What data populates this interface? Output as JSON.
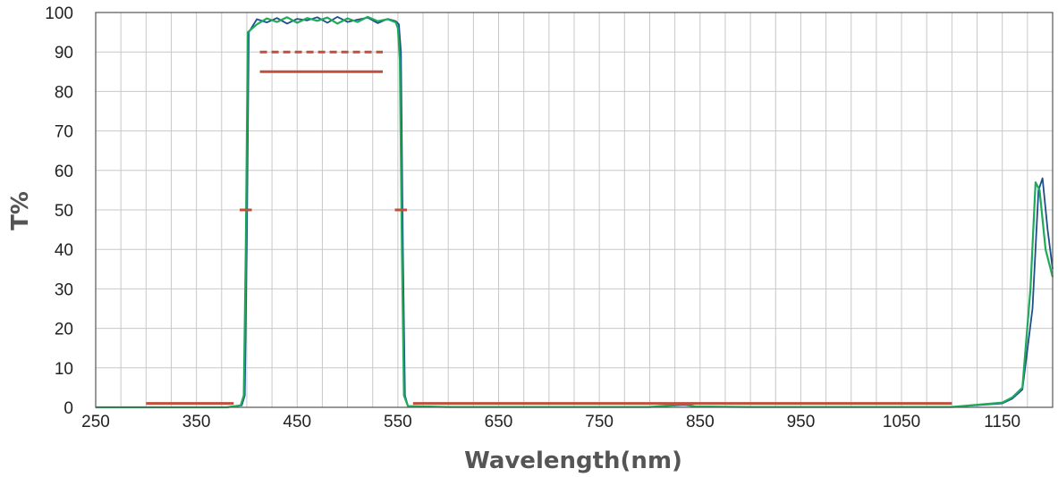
{
  "chart_data": {
    "type": "line",
    "xlabel": "Wavelength(nm)",
    "ylabel": "T%",
    "xlim": [
      250,
      1200
    ],
    "ylim": [
      0,
      100
    ],
    "x_ticks": [
      250,
      350,
      450,
      550,
      650,
      750,
      850,
      950,
      1050,
      1150
    ],
    "y_ticks": [
      0,
      10,
      20,
      30,
      40,
      50,
      60,
      70,
      80,
      90,
      100
    ],
    "grid": true,
    "colors": {
      "series_1": "#1f4e8c",
      "series_2": "#1faa5a",
      "spec": "#c0503c",
      "grid": "#c8c8c8",
      "frame": "#555555"
    },
    "series": [
      {
        "x": [
          250,
          300,
          380,
          395,
          398,
          400,
          402,
          410,
          420,
          430,
          440,
          450,
          460,
          470,
          480,
          490,
          500,
          510,
          520,
          530,
          540,
          548,
          551,
          553,
          555,
          557,
          560,
          600,
          700,
          800,
          835,
          845,
          900,
          1000,
          1100,
          1150,
          1160,
          1170,
          1180,
          1186,
          1190,
          1195,
          1200
        ],
        "y": [
          0,
          0,
          0,
          0.5,
          3,
          40,
          95,
          98.3,
          97.5,
          98.6,
          97.2,
          98.4,
          98.0,
          98.8,
          97.4,
          98.9,
          97.6,
          98.2,
          98.7,
          97.3,
          98.4,
          97.8,
          97,
          90,
          40,
          3,
          0.3,
          0.1,
          0.1,
          0.1,
          0.6,
          0.2,
          0.1,
          0.1,
          0.1,
          1.0,
          2.2,
          4.5,
          25,
          55,
          58,
          45,
          35
        ]
      },
      {
        "x": [
          250,
          300,
          380,
          394,
          397,
          399,
          401,
          410,
          420,
          430,
          440,
          450,
          460,
          470,
          480,
          490,
          500,
          510,
          520,
          530,
          540,
          548,
          550,
          552,
          554,
          556,
          560,
          600,
          700,
          800,
          835,
          845,
          900,
          1000,
          1100,
          1150,
          1160,
          1170,
          1178,
          1183,
          1187,
          1193,
          1200
        ],
        "y": [
          0,
          0,
          0,
          0.5,
          3,
          40,
          95,
          97.0,
          98.5,
          97.6,
          98.8,
          97.4,
          98.6,
          97.9,
          98.7,
          97.2,
          98.5,
          97.6,
          98.9,
          97.8,
          98.3,
          97.5,
          96,
          88,
          40,
          3,
          0.3,
          0.1,
          0.1,
          0.1,
          0.8,
          0.2,
          0.1,
          0.1,
          0.1,
          1.2,
          2.5,
          5,
          30,
          57,
          55,
          40,
          33
        ]
      }
    ],
    "spec_lines": [
      {
        "x": [
          300,
          387
        ],
        "y": [
          1,
          1
        ],
        "style": "solid"
      },
      {
        "x": [
          413,
          535
        ],
        "y": [
          90,
          90
        ],
        "style": "dashed"
      },
      {
        "x": [
          413,
          535
        ],
        "y": [
          85,
          85
        ],
        "style": "solid"
      },
      {
        "x": [
          393,
          405
        ],
        "y": [
          50,
          50
        ],
        "style": "solid"
      },
      {
        "x": [
          547,
          559
        ],
        "y": [
          50,
          50
        ],
        "style": "solid"
      },
      {
        "x": [
          565,
          1100
        ],
        "y": [
          1,
          1
        ],
        "style": "solid"
      }
    ]
  }
}
